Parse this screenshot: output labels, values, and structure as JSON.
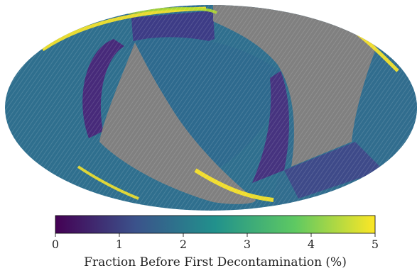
{
  "chart_data": {
    "type": "heatmap",
    "projection": "mollweide",
    "title": "",
    "colormap": "viridis",
    "colormap_stops": [
      "#440154",
      "#3b528b",
      "#21918c",
      "#5ec962",
      "#fde725"
    ],
    "no_data_color": "#808080",
    "colorbar": {
      "label": "Fraction Before First Decontamination (%)",
      "range": [
        0,
        5
      ],
      "ticks": [
        0,
        1,
        2,
        3,
        4,
        5
      ],
      "tick_labels": [
        "0",
        "1",
        "2",
        "3",
        "4",
        "5"
      ],
      "orientation": "horizontal",
      "placement": "bottom"
    },
    "regions": [
      {
        "description": "left sky background",
        "value": 1.4
      },
      {
        "description": "central patch",
        "value": 1.6
      },
      {
        "description": "upper band",
        "value": 1.0
      },
      {
        "description": "inner left stripe",
        "value": 0.5
      },
      {
        "description": "right stripe",
        "value": 0.7
      },
      {
        "description": "right sky background",
        "value": 1.5
      },
      {
        "description": "edge arcs",
        "value": 4.8
      }
    ]
  }
}
